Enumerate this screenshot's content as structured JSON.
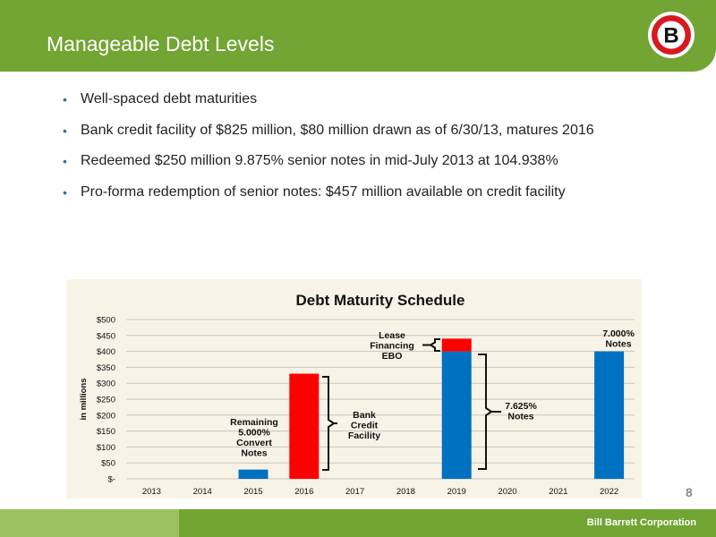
{
  "slide": {
    "title": "Manageable Debt Levels",
    "page_number": "8",
    "company": "Bill Barrett Corporation",
    "logo_letter": "B",
    "bullets": [
      "Well-spaced debt maturities",
      "Bank credit facility of $825 million, $80 million drawn as of 6/30/13, matures 2016",
      "Redeemed $250 million 9.875% senior notes in mid-July 2013 at 104.938%",
      "Pro-forma redemption of senior notes: $457 million available on credit facility"
    ]
  },
  "colors": {
    "accent_green": "#72a533",
    "light_green": "#9bc25e",
    "blue": "#0070c0",
    "red": "#ff0000",
    "panel": "#f7f3e6"
  },
  "chart_data": {
    "type": "bar",
    "title": "Debt Maturity Schedule",
    "ylabel": "in millions",
    "xlabel": "",
    "categories": [
      "2013",
      "2014",
      "2015",
      "2016",
      "2017",
      "2018",
      "2019",
      "2020",
      "2021",
      "2022"
    ],
    "ylim": [
      0,
      500
    ],
    "yticks": [
      0,
      50,
      100,
      150,
      200,
      250,
      300,
      350,
      400,
      450,
      500
    ],
    "ytick_labels": [
      "$-",
      "$50",
      "$100",
      "$150",
      "$200",
      "$250",
      "$300",
      "$350",
      "$400",
      "$450",
      "$500"
    ],
    "grid": true,
    "stacked": true,
    "series": [
      {
        "color": "#0070c0",
        "values": [
          0,
          0,
          29,
          0,
          0,
          0,
          400,
          0,
          0,
          400
        ]
      },
      {
        "color": "#ff0000",
        "values": [
          0,
          0,
          0,
          330,
          0,
          0,
          40,
          0,
          0,
          0
        ]
      }
    ],
    "annotations": [
      {
        "text": "Remaining 5.000% Convert Notes",
        "lines": [
          "Remaining",
          "5.000%",
          "Convert",
          "Notes"
        ],
        "category": "2015"
      },
      {
        "text": "Bank Credit Facility",
        "lines": [
          "Bank",
          "Credit",
          "Facility"
        ],
        "category": "2016"
      },
      {
        "text": "Lease Financing EBO",
        "lines": [
          "Lease",
          "Financing",
          "EBO"
        ],
        "category": "2019"
      },
      {
        "text": "7.625% Notes",
        "lines": [
          "7.625%",
          "Notes"
        ],
        "category": "2019"
      },
      {
        "text": "7.000% Notes",
        "lines": [
          "7.000%",
          "Notes"
        ],
        "category": "2022"
      }
    ]
  }
}
